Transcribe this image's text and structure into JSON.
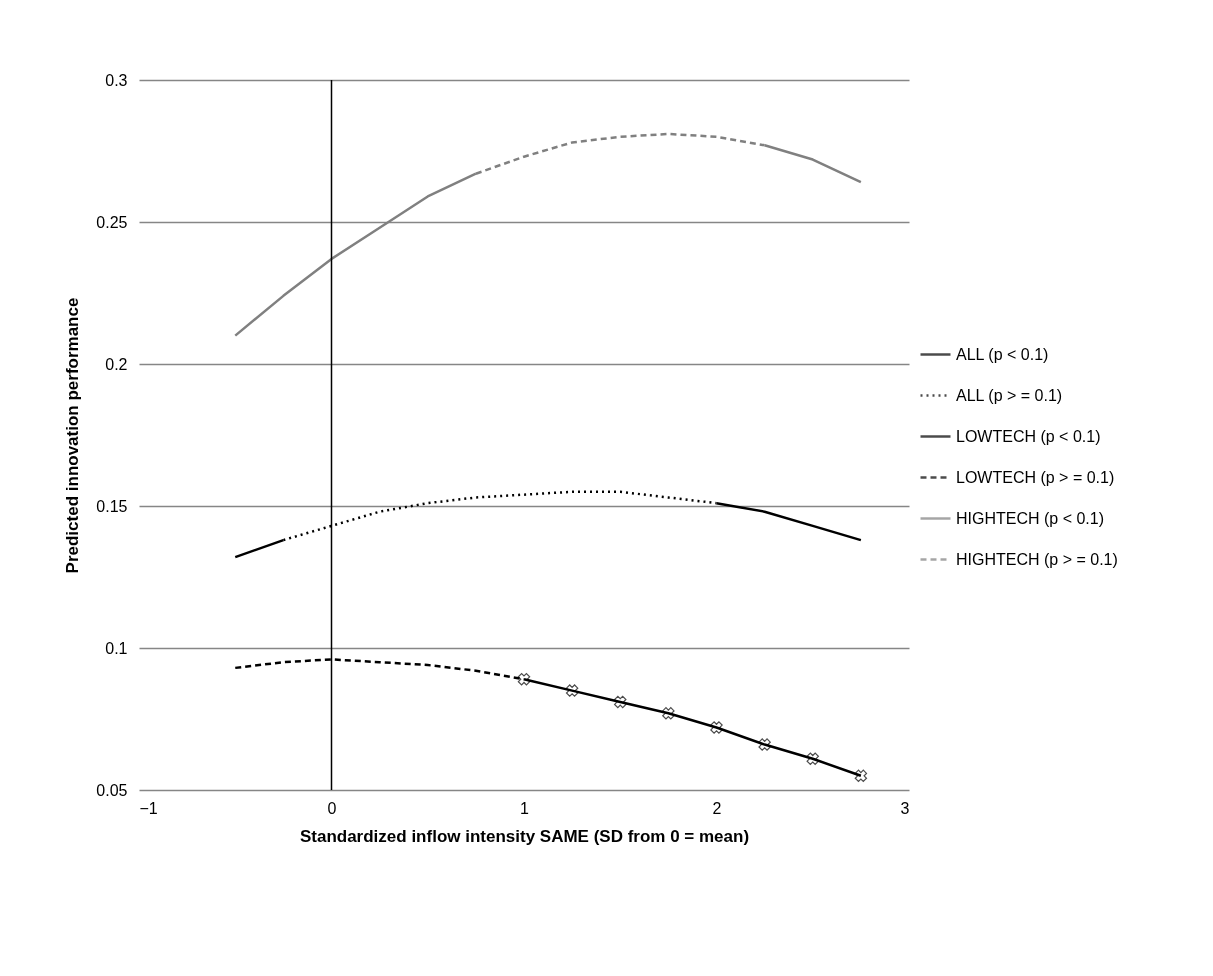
{
  "chart_data": {
    "type": "line",
    "xlabel": "Standardized inflow intensity SAME (SD from 0 = mean)",
    "ylabel": "Predicted innovation performance",
    "x": [
      -0.5,
      -0.25,
      0,
      0.25,
      0.5,
      0.75,
      1,
      1.25,
      1.5,
      1.75,
      2,
      2.25,
      2.5,
      2.75
    ],
    "series": [
      {
        "name": "ALL (p < 0.1)",
        "color": "#000000",
        "line_style": "solid",
        "values": [
          0.132,
          0.138,
          null,
          null,
          null,
          null,
          null,
          null,
          null,
          null,
          0.151,
          0.148,
          0.143,
          0.138
        ]
      },
      {
        "name": "ALL (p > = 0.1)",
        "color": "#000000",
        "line_style": "dotted",
        "values": [
          null,
          0.138,
          0.143,
          0.148,
          0.151,
          0.153,
          0.154,
          0.155,
          0.155,
          0.153,
          0.151,
          null,
          null,
          null
        ]
      },
      {
        "name": "LOWTECH (p < 0.1)",
        "color": "#000000",
        "line_style": "solid",
        "marker": "cross",
        "values": [
          null,
          null,
          null,
          null,
          null,
          null,
          0.089,
          0.085,
          0.081,
          0.077,
          0.072,
          0.066,
          0.061,
          0.055
        ]
      },
      {
        "name": "LOWTECH (p > = 0.1)",
        "color": "#000000",
        "line_style": "dashed",
        "values": [
          0.093,
          0.095,
          0.096,
          0.095,
          0.094,
          0.092,
          0.089,
          null,
          null,
          null,
          null,
          null,
          null,
          null
        ]
      },
      {
        "name": "HIGHTECH (p < 0.1)",
        "color": "#808080",
        "line_style": "solid",
        "values": [
          0.21,
          0.224,
          0.237,
          0.248,
          0.259,
          0.267,
          null,
          null,
          null,
          null,
          null,
          0.277,
          0.272,
          0.264
        ]
      },
      {
        "name": "HIGHTECH (p > = 0.1)",
        "color": "#808080",
        "line_style": "dashed",
        "values": [
          null,
          null,
          null,
          null,
          null,
          0.267,
          0.273,
          0.278,
          0.28,
          0.281,
          0.28,
          0.277,
          null,
          null
        ]
      }
    ],
    "xlim": [
      -1,
      3
    ],
    "xticks": [
      -1,
      0,
      1,
      2,
      3
    ],
    "ylim": [
      0.05,
      0.3
    ],
    "yticks": [
      0.05,
      0.1,
      0.15,
      0.2,
      0.25,
      0.3
    ],
    "grid": "y",
    "legend": "right",
    "ref_lines": [
      {
        "axis": "x",
        "value": 0,
        "color": "#000000"
      }
    ]
  }
}
